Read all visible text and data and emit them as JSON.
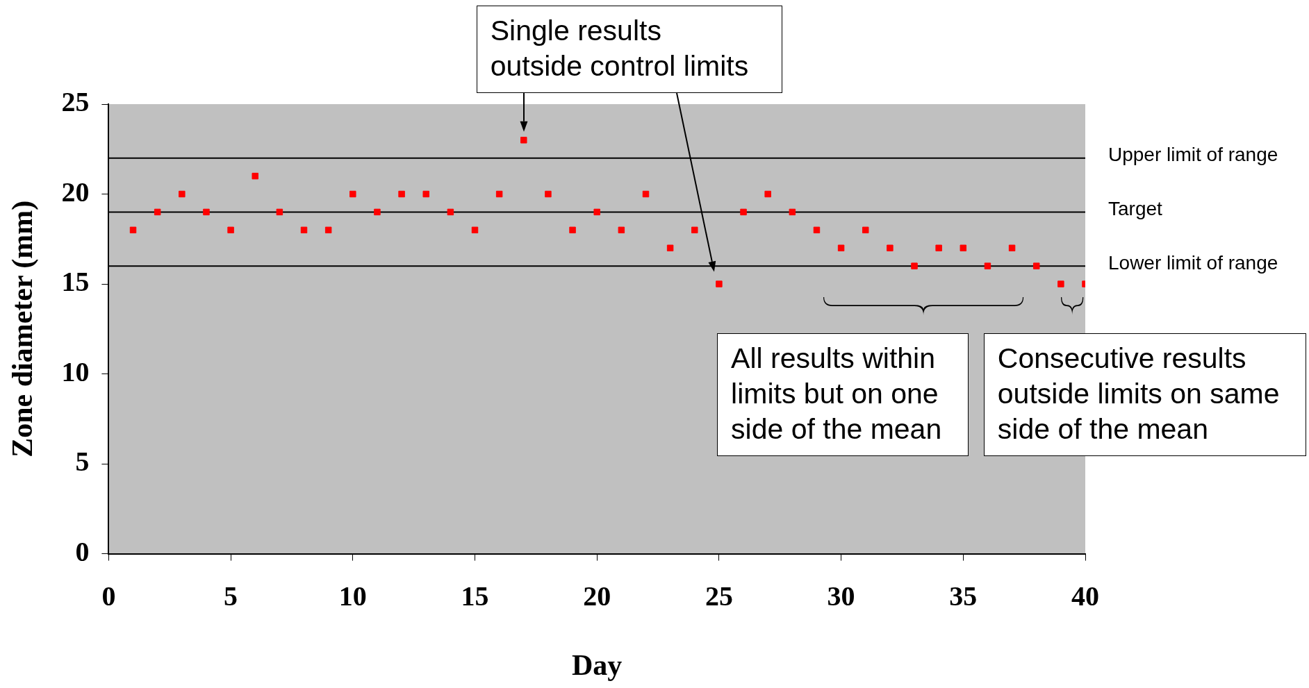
{
  "chart_data": {
    "type": "scatter",
    "xlabel": "Day",
    "ylabel": "Zone diameter (mm)",
    "x": [
      1,
      2,
      3,
      4,
      5,
      6,
      7,
      8,
      9,
      10,
      11,
      12,
      13,
      14,
      15,
      16,
      17,
      18,
      19,
      20,
      21,
      22,
      23,
      24,
      25,
      26,
      27,
      28,
      29,
      30,
      31,
      32,
      33,
      34,
      35,
      36,
      37,
      38,
      39,
      40
    ],
    "series": [
      {
        "color": "#ff0000",
        "values": [
          18,
          19,
          20,
          19,
          18,
          21,
          19,
          18,
          18,
          20,
          19,
          20,
          20,
          19,
          18,
          20,
          23,
          20,
          18,
          19,
          18,
          20,
          17,
          18,
          15,
          19,
          20,
          19,
          18,
          17,
          18,
          17,
          16,
          17,
          17,
          16,
          17,
          16,
          15,
          15
        ]
      }
    ],
    "marker": "square",
    "xlim": [
      0,
      40
    ],
    "xticks": [
      0,
      5,
      10,
      15,
      20,
      25,
      30,
      35,
      40
    ],
    "ylim": [
      0,
      25
    ],
    "yticks": [
      0,
      5,
      10,
      15,
      20,
      25
    ],
    "grid": false,
    "legend": false,
    "ref_lines": [
      {
        "axis": "y",
        "value": 22,
        "label": "Upper limit of range",
        "color": "#000000"
      },
      {
        "axis": "y",
        "value": 19,
        "label": "Target",
        "color": "#000000"
      },
      {
        "axis": "y",
        "value": 16,
        "label": "Lower limit of range",
        "color": "#000000"
      }
    ],
    "annotations": [
      {
        "text": "Single results outside control limits",
        "x": 17,
        "y": 23
      },
      "All results within limits but on one side of the mean",
      "Consecutive results outside limits on same side of the mean"
    ]
  }
}
